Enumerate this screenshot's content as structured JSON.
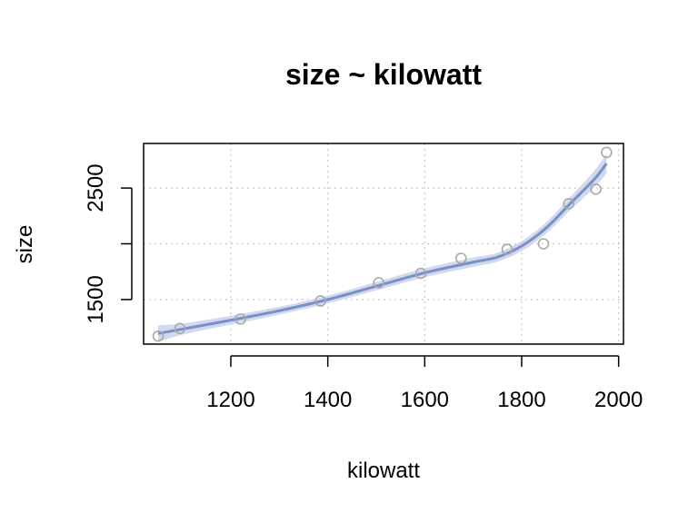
{
  "chart_data": {
    "type": "scatter",
    "title": "size ~ kilowatt",
    "xlabel": "kilowatt",
    "ylabel": "size",
    "xlim": [
      1020,
      2010
    ],
    "ylim": [
      1100,
      2900
    ],
    "xticks": [
      1200,
      1400,
      1600,
      1800,
      2000
    ],
    "yticks": [
      1500,
      2000,
      2500
    ],
    "ytick_labels": [
      "1500",
      "",
      "2500"
    ],
    "grid": true,
    "colors": {
      "points": "#a9a9a9",
      "fit": "#7a8fc8",
      "band": "#d2d9ec",
      "grid": "#c8c8c8"
    },
    "points": [
      {
        "x": 1050,
        "y": 1172
      },
      {
        "x": 1095,
        "y": 1240
      },
      {
        "x": 1220,
        "y": 1325
      },
      {
        "x": 1385,
        "y": 1487
      },
      {
        "x": 1505,
        "y": 1650
      },
      {
        "x": 1592,
        "y": 1735
      },
      {
        "x": 1675,
        "y": 1870
      },
      {
        "x": 1770,
        "y": 1950
      },
      {
        "x": 1845,
        "y": 2000
      },
      {
        "x": 1897,
        "y": 2360
      },
      {
        "x": 1953,
        "y": 2490
      },
      {
        "x": 1975,
        "y": 2820
      }
    ],
    "fit": [
      {
        "x": 1050,
        "y": 1195,
        "lo": 1120,
        "hi": 1270
      },
      {
        "x": 1100,
        "y": 1235,
        "lo": 1185,
        "hi": 1285
      },
      {
        "x": 1200,
        "y": 1315,
        "lo": 1275,
        "hi": 1355
      },
      {
        "x": 1300,
        "y": 1400,
        "lo": 1365,
        "hi": 1435
      },
      {
        "x": 1400,
        "y": 1500,
        "lo": 1465,
        "hi": 1535
      },
      {
        "x": 1500,
        "y": 1620,
        "lo": 1583,
        "hi": 1657
      },
      {
        "x": 1600,
        "y": 1740,
        "lo": 1700,
        "hi": 1780
      },
      {
        "x": 1700,
        "y": 1835,
        "lo": 1793,
        "hi": 1877
      },
      {
        "x": 1750,
        "y": 1880,
        "lo": 1840,
        "hi": 1920
      },
      {
        "x": 1800,
        "y": 1980,
        "lo": 1935,
        "hi": 2025
      },
      {
        "x": 1850,
        "y": 2140,
        "lo": 2090,
        "hi": 2190
      },
      {
        "x": 1900,
        "y": 2360,
        "lo": 2300,
        "hi": 2420
      },
      {
        "x": 1950,
        "y": 2580,
        "lo": 2505,
        "hi": 2655
      },
      {
        "x": 1975,
        "y": 2720,
        "lo": 2630,
        "hi": 2810
      }
    ]
  }
}
